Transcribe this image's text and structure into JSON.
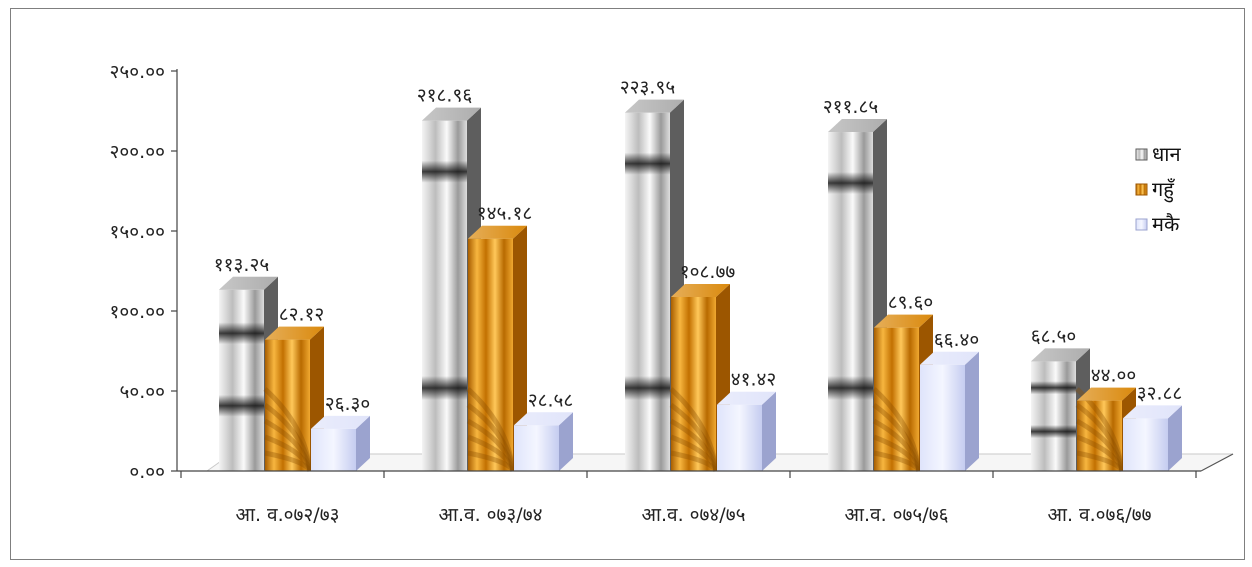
{
  "chart_data": {
    "type": "bar",
    "title": "",
    "xlabel": "",
    "ylabel": "",
    "ylim": [
      0,
      250
    ],
    "yticks": [
      "०.००",
      "५०.००",
      "१००.००",
      "१५०.००",
      "२००.००",
      "२५०.००"
    ],
    "categories": [
      "आ. व.०७२/७३",
      "आ.व. ०७३/७४",
      "आ.व. ०७४/७५",
      "आ.व. ०७५/७६",
      "आ. व.०७६/७७"
    ],
    "legend_position": "right",
    "series": [
      {
        "name": "धान",
        "color": "#8a8a8a",
        "values": [
          113.25,
          218.96,
          223.95,
          211.85,
          68.5
        ],
        "labels": [
          "११३.२५",
          "२१८.९६",
          "२२३.९५",
          "२११.८५",
          "६८.५०"
        ]
      },
      {
        "name": "गहुँ",
        "color": "#e08a00",
        "values": [
          82.12,
          145.18,
          108.77,
          89.6,
          44.0
        ],
        "labels": [
          "८२.१२",
          "१४५.१८",
          "१०८.७७",
          "८९.६०",
          "४४.००"
        ]
      },
      {
        "name": "मकै",
        "color": "#c8d0f4",
        "values": [
          26.3,
          28.58,
          41.42,
          66.4,
          32.88
        ],
        "labels": [
          "२६.३०",
          "२८.५८",
          "४१.४२",
          "६६.४०",
          "३२.८८"
        ]
      }
    ]
  }
}
